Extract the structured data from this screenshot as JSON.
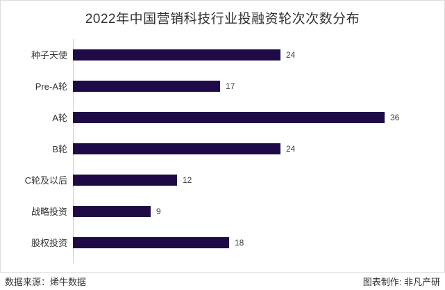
{
  "title": "2022年中国营销科技行业投融资轮次次数分布",
  "chart_data": {
    "type": "bar",
    "orientation": "horizontal",
    "title": "2022年中国营销科技行业投融资轮次次数分布",
    "categories": [
      "种子天使",
      "Pre-A轮",
      "A轮",
      "B轮",
      "C轮及以后",
      "战略投资",
      "股权投资"
    ],
    "values": [
      24,
      17,
      36,
      24,
      12,
      9,
      18
    ],
    "xlabel": "",
    "ylabel": "",
    "xlim": [
      0,
      36
    ],
    "grid": false,
    "legend": "none",
    "data_labels": true,
    "bar_color": "#1e0a46"
  },
  "footer": {
    "source": "数据来源：烯牛数据",
    "credit": "图表制作: 非凡产研"
  },
  "colors": {
    "bar": "#1e0a46",
    "card_border": "#dddddd",
    "axis_line": "#cccccc",
    "text": "#333333"
  }
}
